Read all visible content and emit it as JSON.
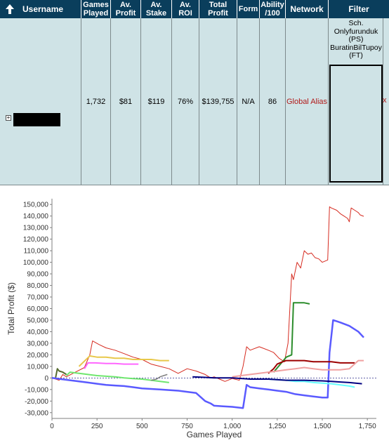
{
  "table": {
    "headers": {
      "username": "Username",
      "games_played": "Games Played",
      "av_profit": "Av. Profit",
      "av_stake": "Av. Stake",
      "av_roi": "Av. ROI",
      "total_profit": "Total Profit",
      "form": "Form",
      "ability": "Ability /100",
      "network": "Network",
      "filter": "Filter"
    },
    "row": {
      "games_played": "1,732",
      "av_profit": "$81",
      "av_stake": "$119",
      "av_roi": "76%",
      "total_profit": "$139,755",
      "form": "N/A",
      "ability": "86",
      "network": "Global Alias",
      "remove": "x"
    },
    "filter_text": [
      "Sch.",
      "Onlyfurunduk",
      "(PS)",
      "BuratinBilTupoy",
      "(FT)"
    ],
    "colors": {
      "header_bg": "#0a3e5c",
      "row_bg": "#cfe3e6",
      "network_link": "#b11a1a"
    }
  },
  "chart_data": {
    "type": "line",
    "xlabel": "Games Played",
    "ylabel": "Total Profit ($)",
    "xlim": [
      0,
      1800
    ],
    "ylim": [
      -35000,
      155000
    ],
    "xticks": [
      "0",
      "250",
      "500",
      "750",
      "1,000",
      "1,250",
      "1,500",
      "1,750"
    ],
    "yticks": [
      "-30,000",
      "-20,000",
      "-10,000",
      "0",
      "10,000",
      "20,000",
      "30,000",
      "40,000",
      "50,000",
      "60,000",
      "70,000",
      "80,000",
      "90,000",
      "100,000",
      "110,000",
      "120,000",
      "130,000",
      "140,000",
      "150,000"
    ],
    "grid": false,
    "series": [
      {
        "color": "#d62b20",
        "width": 1,
        "x": [
          0,
          40,
          60,
          80,
          130,
          180,
          210,
          225,
          260,
          300,
          350,
          400,
          450,
          500,
          550,
          600,
          650,
          700,
          750,
          800,
          850,
          880,
          900,
          930,
          960,
          1000,
          1040,
          1060,
          1080,
          1100,
          1150,
          1200,
          1230,
          1260,
          1290,
          1310,
          1330,
          1340,
          1360,
          1380,
          1400,
          1420,
          1440,
          1460,
          1480,
          1500,
          1530,
          1540,
          1550,
          1580,
          1600,
          1620,
          1640,
          1650,
          1660,
          1680,
          1700,
          1710,
          1730
        ],
        "y": [
          0,
          -2000,
          3000,
          1000,
          5000,
          9000,
          20000,
          32000,
          29000,
          26000,
          24000,
          21000,
          18000,
          16000,
          12000,
          10000,
          8000,
          4000,
          8000,
          6000,
          3000,
          0,
          1000,
          -1000,
          -3000,
          -500,
          -2000,
          10000,
          27000,
          24000,
          27000,
          24000,
          22000,
          17000,
          14000,
          30000,
          90000,
          85000,
          100000,
          95000,
          110000,
          107000,
          108000,
          104000,
          103000,
          100000,
          102000,
          148000,
          147000,
          145000,
          142000,
          140000,
          138000,
          135000,
          147000,
          145000,
          143000,
          141000,
          139755
        ]
      },
      {
        "color": "#e8c84a",
        "width": 2,
        "x": [
          150,
          210,
          250,
          300,
          350,
          400,
          450,
          500,
          550,
          600,
          650
        ],
        "y": [
          10000,
          19000,
          18000,
          18000,
          17000,
          17000,
          16000,
          16000,
          16000,
          15000,
          15000
        ]
      },
      {
        "color": "#ff66ff",
        "width": 2,
        "x": [
          180,
          200,
          240,
          300,
          350,
          400,
          480
        ],
        "y": [
          8000,
          13000,
          13000,
          12500,
          12500,
          12000,
          12000
        ]
      },
      {
        "color": "#6ee66e",
        "width": 2,
        "x": [
          80,
          100,
          150,
          200,
          250,
          300,
          350,
          400,
          450,
          500,
          550,
          600,
          650
        ],
        "y": [
          2000,
          5000,
          4000,
          3000,
          2000,
          1500,
          1000,
          0,
          -500,
          -1000,
          -2000,
          -3000,
          -4000
        ]
      },
      {
        "color": "#2c8d2c",
        "width": 2,
        "x": [
          1230,
          1300,
          1330,
          1340,
          1360,
          1400,
          1430
        ],
        "y": [
          5000,
          18000,
          20000,
          65000,
          65000,
          65000,
          64000
        ]
      },
      {
        "color": "#556b2f",
        "width": 2,
        "x": [
          20,
          30,
          40,
          60,
          80
        ],
        "y": [
          0,
          8000,
          6000,
          5000,
          3000
        ]
      },
      {
        "color": "#5a5aff",
        "width": 2.5,
        "x": [
          0,
          50,
          100,
          150,
          200,
          250,
          300,
          350,
          400,
          450,
          500,
          550,
          600,
          650,
          700,
          750,
          800,
          850,
          880,
          900,
          950,
          1000,
          1060,
          1080,
          1100,
          1150,
          1200,
          1250,
          1300,
          1350,
          1400,
          1450,
          1500,
          1530,
          1540,
          1560,
          1580,
          1600,
          1650,
          1700,
          1730
        ],
        "y": [
          0,
          -1000,
          -2000,
          -3000,
          -4000,
          -5000,
          -6000,
          -6500,
          -7000,
          -8000,
          -9000,
          -9500,
          -10000,
          -10500,
          -11000,
          -12000,
          -13000,
          -20000,
          -22000,
          -24000,
          -24500,
          -25000,
          -26000,
          -6000,
          -8000,
          -9000,
          -10000,
          -11000,
          -12000,
          -14000,
          -15000,
          -16000,
          -17000,
          -17000,
          22000,
          50000,
          49000,
          48000,
          45000,
          40000,
          35000
        ]
      },
      {
        "color": "#9c0000",
        "width": 2,
        "x": [
          1200,
          1230,
          1250,
          1280,
          1300,
          1350,
          1400,
          1450,
          1500,
          1550,
          1600,
          1650,
          1680
        ],
        "y": [
          4000,
          8000,
          12000,
          14000,
          15000,
          15000,
          15000,
          14000,
          14000,
          14000,
          13000,
          13000,
          13000
        ]
      },
      {
        "color": "#f0a0a0",
        "width": 2,
        "x": [
          1000,
          1050,
          1100,
          1150,
          1200,
          1250,
          1300,
          1350,
          1400,
          1450,
          1500,
          1550,
          1600,
          1650,
          1700,
          1730
        ],
        "y": [
          1000,
          2000,
          3000,
          4000,
          5000,
          6000,
          7000,
          8000,
          9000,
          8000,
          7000,
          7000,
          7000,
          8000,
          15000,
          15000
        ]
      },
      {
        "color": "#66ffff",
        "width": 2,
        "x": [
          1200,
          1300,
          1350,
          1400,
          1450,
          1500,
          1550,
          1600,
          1650,
          1680
        ],
        "y": [
          -1000,
          -2000,
          -3000,
          -3000,
          -4000,
          -4500,
          -5000,
          -6000,
          -7000,
          -8000
        ]
      },
      {
        "color": "#000080",
        "width": 2,
        "x": [
          780,
          850,
          900,
          1000,
          1100,
          1200,
          1300,
          1400,
          1500,
          1550,
          1600,
          1650,
          1720
        ],
        "y": [
          1000,
          500,
          0,
          0,
          -1000,
          -1000,
          -2000,
          -2000,
          -2500,
          -3000,
          -3500,
          -4000,
          -5000
        ]
      },
      {
        "color": "#7f7f7f",
        "width": 1.5,
        "x": [
          550,
          580,
          600,
          620,
          640
        ],
        "y": [
          -2000,
          -1000,
          1000,
          2000,
          3000
        ]
      }
    ],
    "zero_line": 0
  }
}
